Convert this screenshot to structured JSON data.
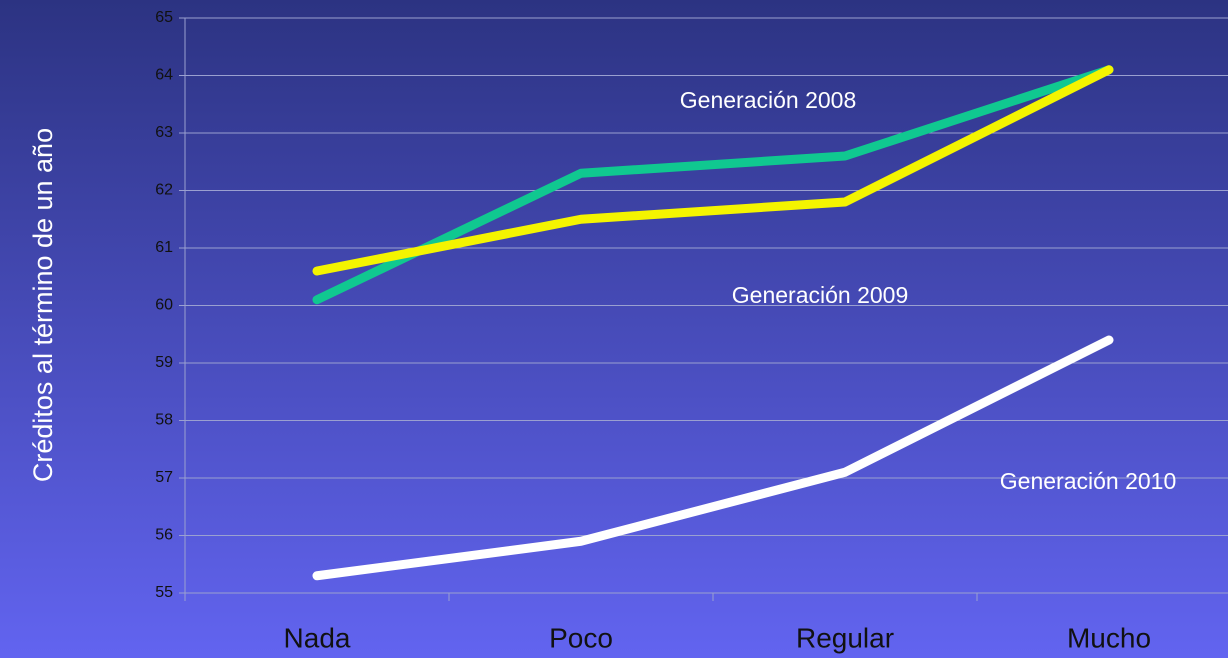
{
  "chart_data": {
    "type": "line",
    "ylabel": "Créditos al término de un año",
    "categories": [
      "Nada",
      "Poco",
      "Regular",
      "Mucho"
    ],
    "series": [
      {
        "name": "Generación 2008",
        "color": "#10c890",
        "values": [
          60.1,
          62.3,
          62.6,
          64.1
        ]
      },
      {
        "name": "Generación 2009",
        "color": "#f4f400",
        "values": [
          60.6,
          61.5,
          61.8,
          64.1
        ]
      },
      {
        "name": "Generación 2010",
        "color": "#ffffff",
        "values": [
          55.3,
          55.9,
          57.1,
          59.4
        ]
      }
    ],
    "ylim": [
      55,
      65
    ],
    "yticks": [
      55,
      56,
      57,
      58,
      59,
      60,
      61,
      62,
      63,
      64,
      65
    ],
    "grid": true
  }
}
